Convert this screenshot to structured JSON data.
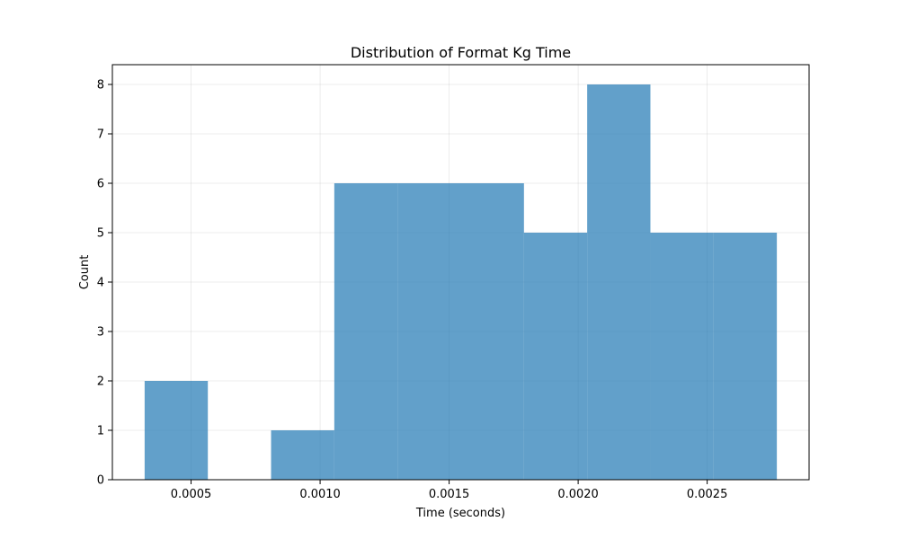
{
  "chart_data": {
    "type": "bar",
    "title": "Distribution of Format Kg Time",
    "xlabel": "Time (seconds)",
    "ylabel": "Count",
    "xlim": [
      0.000195,
      0.002895
    ],
    "ylim": [
      0,
      8.4
    ],
    "grid": true,
    "bar_color": "#1f77b4",
    "bar_alpha": 0.7,
    "grid_color": "#b0b0b0",
    "bins": [
      {
        "start": 0.00032,
        "end": 0.000565,
        "count": 2
      },
      {
        "start": 0.000565,
        "end": 0.00081,
        "count": 0
      },
      {
        "start": 0.00081,
        "end": 0.001055,
        "count": 1
      },
      {
        "start": 0.001055,
        "end": 0.0013,
        "count": 6
      },
      {
        "start": 0.0013,
        "end": 0.001545,
        "count": 6
      },
      {
        "start": 0.001545,
        "end": 0.00179,
        "count": 6
      },
      {
        "start": 0.00179,
        "end": 0.002035,
        "count": 5
      },
      {
        "start": 0.002035,
        "end": 0.00228,
        "count": 8
      },
      {
        "start": 0.00228,
        "end": 0.002525,
        "count": 5
      },
      {
        "start": 0.002525,
        "end": 0.00277,
        "count": 5
      }
    ],
    "x_ticks": [
      {
        "value": 0.0005,
        "label": "0.0005"
      },
      {
        "value": 0.001,
        "label": "0.0010"
      },
      {
        "value": 0.0015,
        "label": "0.0015"
      },
      {
        "value": 0.002,
        "label": "0.0020"
      },
      {
        "value": 0.0025,
        "label": "0.0025"
      }
    ],
    "y_ticks": [
      {
        "value": 0,
        "label": "0"
      },
      {
        "value": 1,
        "label": "1"
      },
      {
        "value": 2,
        "label": "2"
      },
      {
        "value": 3,
        "label": "3"
      },
      {
        "value": 4,
        "label": "4"
      },
      {
        "value": 5,
        "label": "5"
      },
      {
        "value": 6,
        "label": "6"
      },
      {
        "value": 7,
        "label": "7"
      },
      {
        "value": 8,
        "label": "8"
      }
    ]
  }
}
